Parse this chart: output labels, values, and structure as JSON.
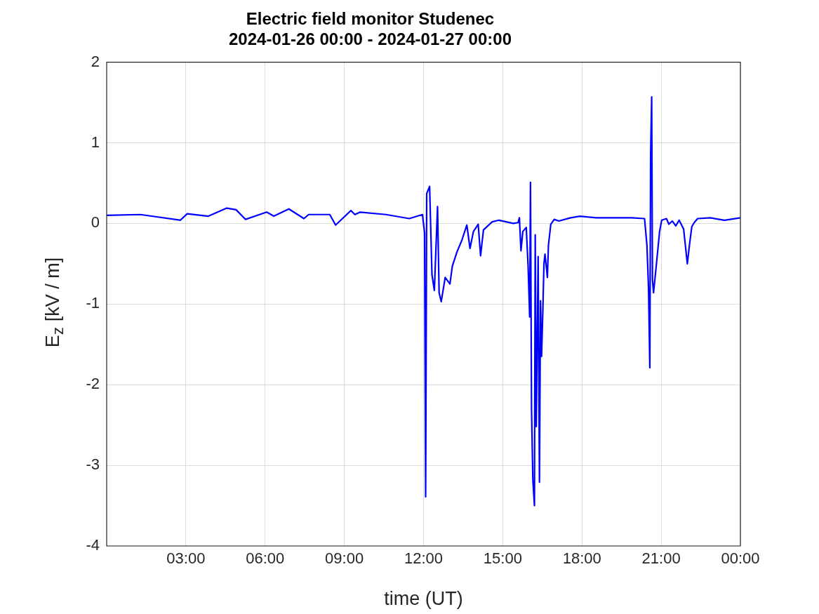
{
  "chart_data": {
    "type": "line",
    "title": "Electric field monitor Studenec\n2024-01-26 00:00 - 2024-01-27 00:00",
    "xlabel": "time (UT)",
    "ylabel": "E$_{z}$ [kV / m]",
    "xlim": [
      0,
      24
    ],
    "xticks": [
      {
        "value": 3,
        "label": "03:00"
      },
      {
        "value": 6,
        "label": "06:00"
      },
      {
        "value": 9,
        "label": "09:00"
      },
      {
        "value": 12,
        "label": "12:00"
      },
      {
        "value": 15,
        "label": "15:00"
      },
      {
        "value": 18,
        "label": "18:00"
      },
      {
        "value": 21,
        "label": "21:00"
      },
      {
        "value": 24,
        "label": "00:00"
      }
    ],
    "ylim": [
      -4,
      2
    ],
    "yticks": [
      -4,
      -3,
      -2,
      -1,
      0,
      1,
      2
    ],
    "grid": true,
    "legend": false,
    "marker": "none",
    "line_style": "solid",
    "series": [
      {
        "color": "#0000ff",
        "x": [
          0,
          1.28,
          2.79,
          3.05,
          3.85,
          4.55,
          4.9,
          5.26,
          6.06,
          6.33,
          6.9,
          7.47,
          7.65,
          8.45,
          8.67,
          9.25,
          9.4,
          9.6,
          10.58,
          11.46,
          11.96,
          12.04,
          12.08,
          12.12,
          12.23,
          12.32,
          12.41,
          12.53,
          12.59,
          12.67,
          12.82,
          13.0,
          13.09,
          13.27,
          13.45,
          13.64,
          13.76,
          13.89,
          14.07,
          14.16,
          14.27,
          14.6,
          14.86,
          15.4,
          15.58,
          15.63,
          15.69,
          15.76,
          15.89,
          15.96,
          16.02,
          16.05,
          16.09,
          16.14,
          16.2,
          16.23,
          16.27,
          16.34,
          16.39,
          16.43,
          16.47,
          16.52,
          16.56,
          16.6,
          16.69,
          16.73,
          16.82,
          16.95,
          17.12,
          17.57,
          17.92,
          18.54,
          19.35,
          19.88,
          20.37,
          20.46,
          20.52,
          20.57,
          20.6,
          20.64,
          20.67,
          20.71,
          20.8,
          20.94,
          21.02,
          21.2,
          21.29,
          21.42,
          21.55,
          21.68,
          21.85,
          21.99,
          22.07,
          22.16,
          22.25,
          22.38,
          22.86,
          23.4,
          24
        ],
        "values": [
          0.1,
          0.11,
          0.04,
          0.12,
          0.09,
          0.19,
          0.17,
          0.05,
          0.14,
          0.09,
          0.18,
          0.06,
          0.11,
          0.11,
          -0.02,
          0.16,
          0.11,
          0.14,
          0.11,
          0.06,
          0.11,
          -0.12,
          -3.39,
          0.37,
          0.46,
          -0.64,
          -0.83,
          0.21,
          -0.86,
          -0.97,
          -0.67,
          -0.75,
          -0.53,
          -0.35,
          -0.21,
          -0.02,
          -0.31,
          -0.1,
          -0.01,
          -0.4,
          -0.08,
          0.02,
          0.04,
          0.0,
          0.01,
          0.07,
          -0.34,
          -0.1,
          -0.05,
          -0.53,
          -1.16,
          0.51,
          -2.31,
          -3.18,
          -3.5,
          -0.14,
          -2.52,
          -0.41,
          -3.21,
          -0.96,
          -1.65,
          -1.06,
          -0.5,
          -0.38,
          -0.67,
          -0.27,
          -0.01,
          0.05,
          0.03,
          0.07,
          0.09,
          0.07,
          0.07,
          0.07,
          0.06,
          -0.27,
          -0.79,
          -1.79,
          0.86,
          1.57,
          -0.7,
          -0.86,
          -0.57,
          -0.1,
          0.04,
          0.06,
          -0.01,
          0.03,
          -0.03,
          0.04,
          -0.07,
          -0.5,
          -0.27,
          -0.04,
          0.01,
          0.06,
          0.07,
          0.04,
          0.07
        ]
      }
    ]
  }
}
